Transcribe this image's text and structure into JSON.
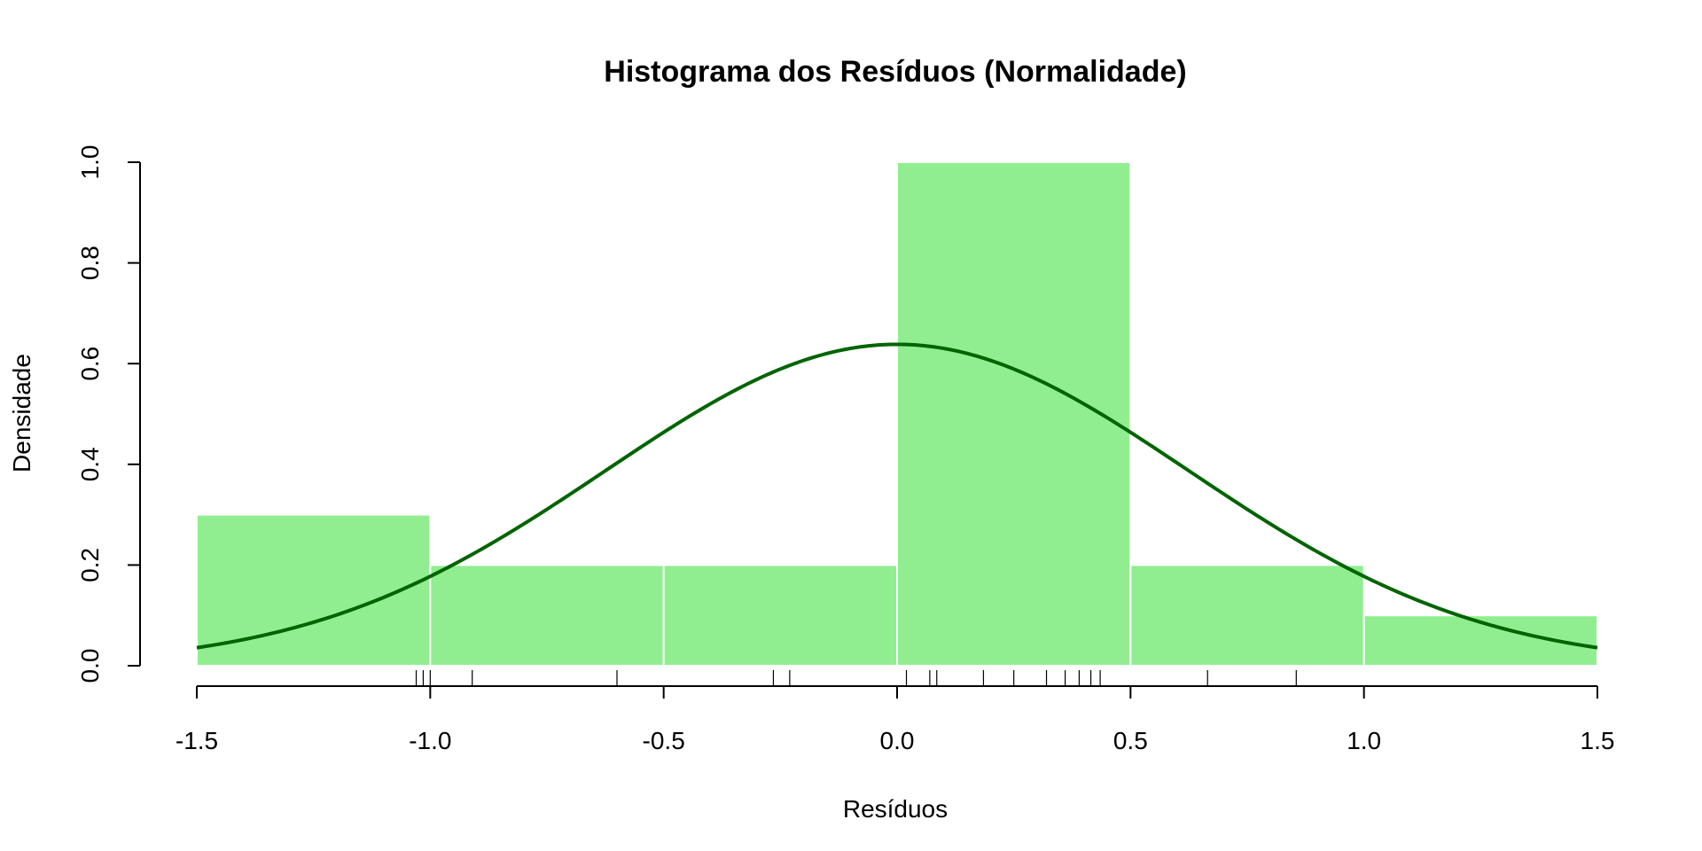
{
  "chart_data": {
    "type": "bar",
    "title": "Histograma dos Resíduos (Normalidade)",
    "xlabel": "Resíduos",
    "ylabel": "Densidade",
    "xlim": [
      -1.5,
      1.5
    ],
    "ylim": [
      0,
      1.0
    ],
    "x_ticks": [
      -1.5,
      -1.0,
      -0.5,
      0.0,
      0.5,
      1.0,
      1.5
    ],
    "x_tick_labels": [
      "-1.5",
      "-1.0",
      "-0.5",
      "0.0",
      "0.5",
      "1.0",
      "1.5"
    ],
    "y_ticks": [
      0.0,
      0.2,
      0.4,
      0.6,
      0.8,
      1.0
    ],
    "y_tick_labels": [
      "0.0",
      "0.2",
      "0.4",
      "0.6",
      "0.8",
      "1.0"
    ],
    "bins": [
      {
        "start": -1.5,
        "end": -1.0,
        "density": 0.3
      },
      {
        "start": -1.0,
        "end": -0.5,
        "density": 0.2
      },
      {
        "start": -0.5,
        "end": 0.0,
        "density": 0.2
      },
      {
        "start": 0.0,
        "end": 0.5,
        "density": 1.0
      },
      {
        "start": 0.5,
        "end": 1.0,
        "density": 0.2
      },
      {
        "start": 1.0,
        "end": 1.5,
        "density": 0.1
      }
    ],
    "bar_color": "#90EE90",
    "bar_border": "#ffffff",
    "normal_curve": {
      "mean": 0.0,
      "sd": 0.625,
      "color": "#006400"
    },
    "rug": [
      -1.03,
      -1.015,
      -1.0,
      -0.91,
      -0.6,
      -0.265,
      -0.23,
      0.02,
      0.07,
      0.085,
      0.185,
      0.25,
      0.32,
      0.36,
      0.39,
      0.415,
      0.435,
      0.665,
      0.855
    ],
    "grid": false,
    "legend": "none"
  }
}
